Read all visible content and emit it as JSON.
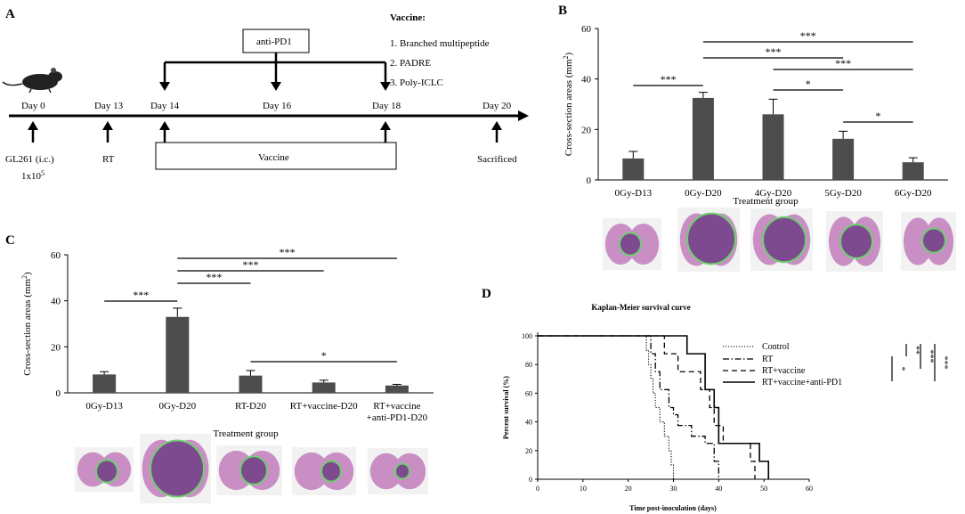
{
  "panel_labels": {
    "a": "A",
    "b": "B",
    "c": "C",
    "d": "D"
  },
  "timeline": {
    "days": [
      {
        "label": "Day 0",
        "below": "GL261  (i.c.)",
        "below2": "1x10",
        "below2_sup": "5"
      },
      {
        "label": "Day 13",
        "below": "RT"
      },
      {
        "label": "Day 14"
      },
      {
        "label": "Day 16"
      },
      {
        "label": "Day 18"
      },
      {
        "label": "Day 20",
        "below": "Sacrificed"
      }
    ],
    "antibody": "anti-PD1",
    "vaccine_box": "Vaccine",
    "vaccine_title": "Vaccine:",
    "vaccine_items": [
      "1. Branched multipeptide",
      "2. PADRE",
      "3. Poly-ICLC"
    ]
  },
  "colors": {
    "bar": "#4d4d4d",
    "tissue": "#c98fc4",
    "tumor": "#7d4a8f",
    "outline": "#6fcf6f"
  },
  "chart_data": [
    {
      "id": "B",
      "type": "bar",
      "title": "",
      "ylabel": "Cross-section areas (mm",
      "ylabel_sup": "2",
      "ylabel_end": ")",
      "xlabel": "Treatment group",
      "categories": [
        "0Gy-D13",
        "0Gy-D20",
        "4Gy-D20",
        "5Gy-D20",
        "6Gy-D20"
      ],
      "values": [
        8.5,
        32.5,
        26,
        16.3,
        7
      ],
      "errors": [
        2.8,
        2.2,
        6,
        3,
        1.8
      ],
      "ylim": [
        0,
        60
      ],
      "yticks": [
        0,
        20,
        40,
        60
      ],
      "significance": [
        {
          "from": 1,
          "to": 4,
          "label": "***"
        },
        {
          "from": 0,
          "to": 1,
          "label": "***"
        },
        {
          "from": 1,
          "to": 3,
          "label": "***"
        },
        {
          "from": 2,
          "to": 4,
          "label": "***"
        },
        {
          "from": 2,
          "to": 3,
          "label": "*"
        },
        {
          "from": 3,
          "to": 4,
          "label": "*"
        }
      ]
    },
    {
      "id": "C",
      "type": "bar",
      "title": "",
      "ylabel": "Cross-section areas (mm",
      "ylabel_sup": "2",
      "ylabel_end": ")",
      "xlabel": "Treatment group",
      "categories": [
        "0Gy-D13",
        "0Gy-D20",
        "RT-D20",
        "RT+vaccine-D20",
        "RT+vaccine\n+anti-PD1-D20"
      ],
      "values": [
        8,
        33,
        7.5,
        4.5,
        3.2
      ],
      "errors": [
        1.2,
        3.8,
        2.2,
        1,
        0.5
      ],
      "ylim": [
        0,
        60
      ],
      "yticks": [
        0,
        20,
        40,
        60
      ],
      "significance": [
        {
          "from": 1,
          "to": 4,
          "label": "***"
        },
        {
          "from": 1,
          "to": 3,
          "label": "***"
        },
        {
          "from": 1,
          "to": 2,
          "label": "***"
        },
        {
          "from": 0,
          "to": 1,
          "label": "***"
        },
        {
          "from": 2,
          "to": 4,
          "label": "*"
        }
      ]
    },
    {
      "id": "D",
      "type": "line",
      "title": "Kaplan-Meier survival curve",
      "xlabel": "Time post-inoculation (days)",
      "ylabel": "Percent survival (%)",
      "xlim": [
        0,
        60
      ],
      "ylim": [
        0,
        100
      ],
      "xticks": [
        0,
        10,
        20,
        30,
        40,
        50,
        60
      ],
      "yticks": [
        0,
        20,
        40,
        60,
        80,
        100
      ],
      "series": [
        {
          "name": "Control",
          "dash": "dotted",
          "times": [
            23,
            24,
            24.5,
            25,
            25.5,
            26,
            27,
            28,
            29,
            29.5,
            30
          ],
          "survival": [
            100,
            90,
            80,
            70,
            60,
            50,
            40,
            30,
            20,
            10,
            0
          ]
        },
        {
          "name": "RT",
          "dash": "dashdot",
          "times": [
            24,
            25,
            26,
            27,
            29,
            30,
            31,
            32,
            34,
            37,
            39,
            40
          ],
          "survival": [
            100,
            87.5,
            75,
            62.5,
            50,
            45,
            37.5,
            37.5,
            30,
            25,
            12.5,
            0
          ]
        },
        {
          "name": "RT+vaccine",
          "dash": "dashed",
          "times": [
            25,
            28,
            31,
            33,
            36,
            38,
            39,
            41,
            47,
            48
          ],
          "survival": [
            100,
            87.5,
            75,
            75,
            62.5,
            50,
            37.5,
            25,
            12.5,
            0
          ]
        },
        {
          "name": "RT+vaccine+anti-PD1",
          "dash": "solid",
          "times": [
            30,
            33,
            37,
            39,
            40,
            44,
            49,
            51
          ],
          "survival": [
            100,
            87.5,
            62.5,
            50,
            25,
            25,
            12.5,
            0
          ]
        }
      ],
      "significance": [
        {
          "label": "**"
        },
        {
          "label": "***"
        },
        {
          "label": "***"
        },
        {
          "label": "*"
        }
      ]
    }
  ]
}
